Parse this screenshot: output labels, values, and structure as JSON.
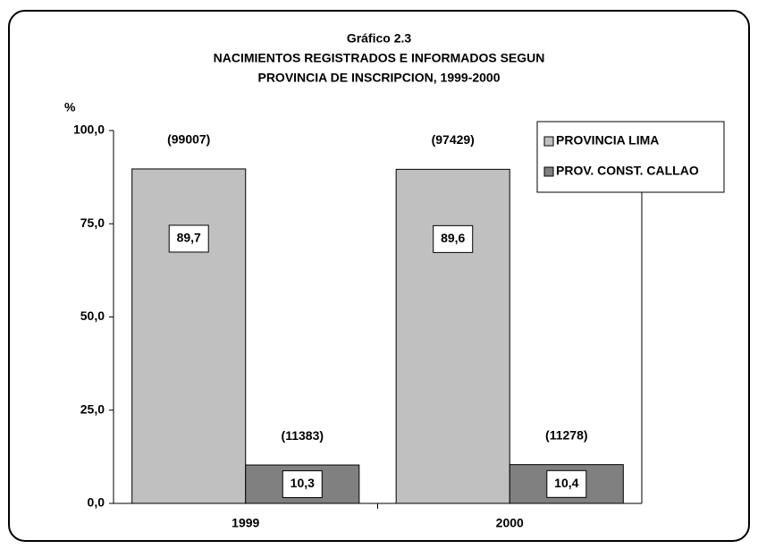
{
  "chart_data": {
    "type": "bar",
    "title": "Gráfico 2.3",
    "subtitle": [
      "NACIMIENTOS REGISTRADOS E INFORMADOS SEGUN",
      "PROVINCIA DE INSCRIPCION, 1999-2000"
    ],
    "y_label": "%",
    "categories": [
      "1999",
      "2000"
    ],
    "series": [
      {
        "name": "PROVINCIA LIMA",
        "color": "#c0c0c0",
        "values": [
          89.7,
          89.6
        ],
        "value_labels": [
          "89,7",
          "89,6"
        ],
        "annotations": [
          "(99007)",
          "(97429)"
        ]
      },
      {
        "name": "PROV. CONST. CALLAO",
        "color": "#808080",
        "values": [
          10.3,
          10.4
        ],
        "value_labels": [
          "10,3",
          "10,4"
        ],
        "annotations": [
          "(11383)",
          "(11278)"
        ]
      }
    ],
    "ylim": [
      0,
      100
    ],
    "yticks": [
      {
        "value": 0,
        "label": "0,0"
      },
      {
        "value": 25,
        "label": "25,0"
      },
      {
        "value": 50,
        "label": "50,0"
      },
      {
        "value": 75,
        "label": "75,0"
      },
      {
        "value": 100,
        "label": "100,0"
      }
    ],
    "legend": "top-right"
  }
}
